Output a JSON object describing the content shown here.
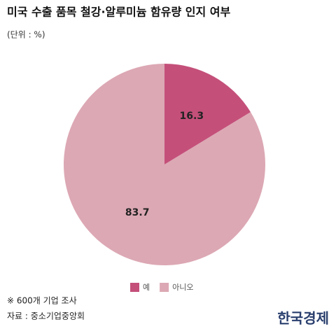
{
  "chart_data": {
    "type": "pie",
    "title": "미국 수출 품목 철강·알루미늄 함유량 인지 여부",
    "subtitle": "(단위 : %)",
    "categories": [
      "예",
      "아니오"
    ],
    "values": [
      16.3,
      83.7
    ],
    "colors": [
      "#c4507a",
      "#dca8b4"
    ],
    "notes": [
      "※ 600개 기업 조사",
      "자료 : 중소기업중앙회"
    ],
    "source_logo": "한국경제"
  }
}
